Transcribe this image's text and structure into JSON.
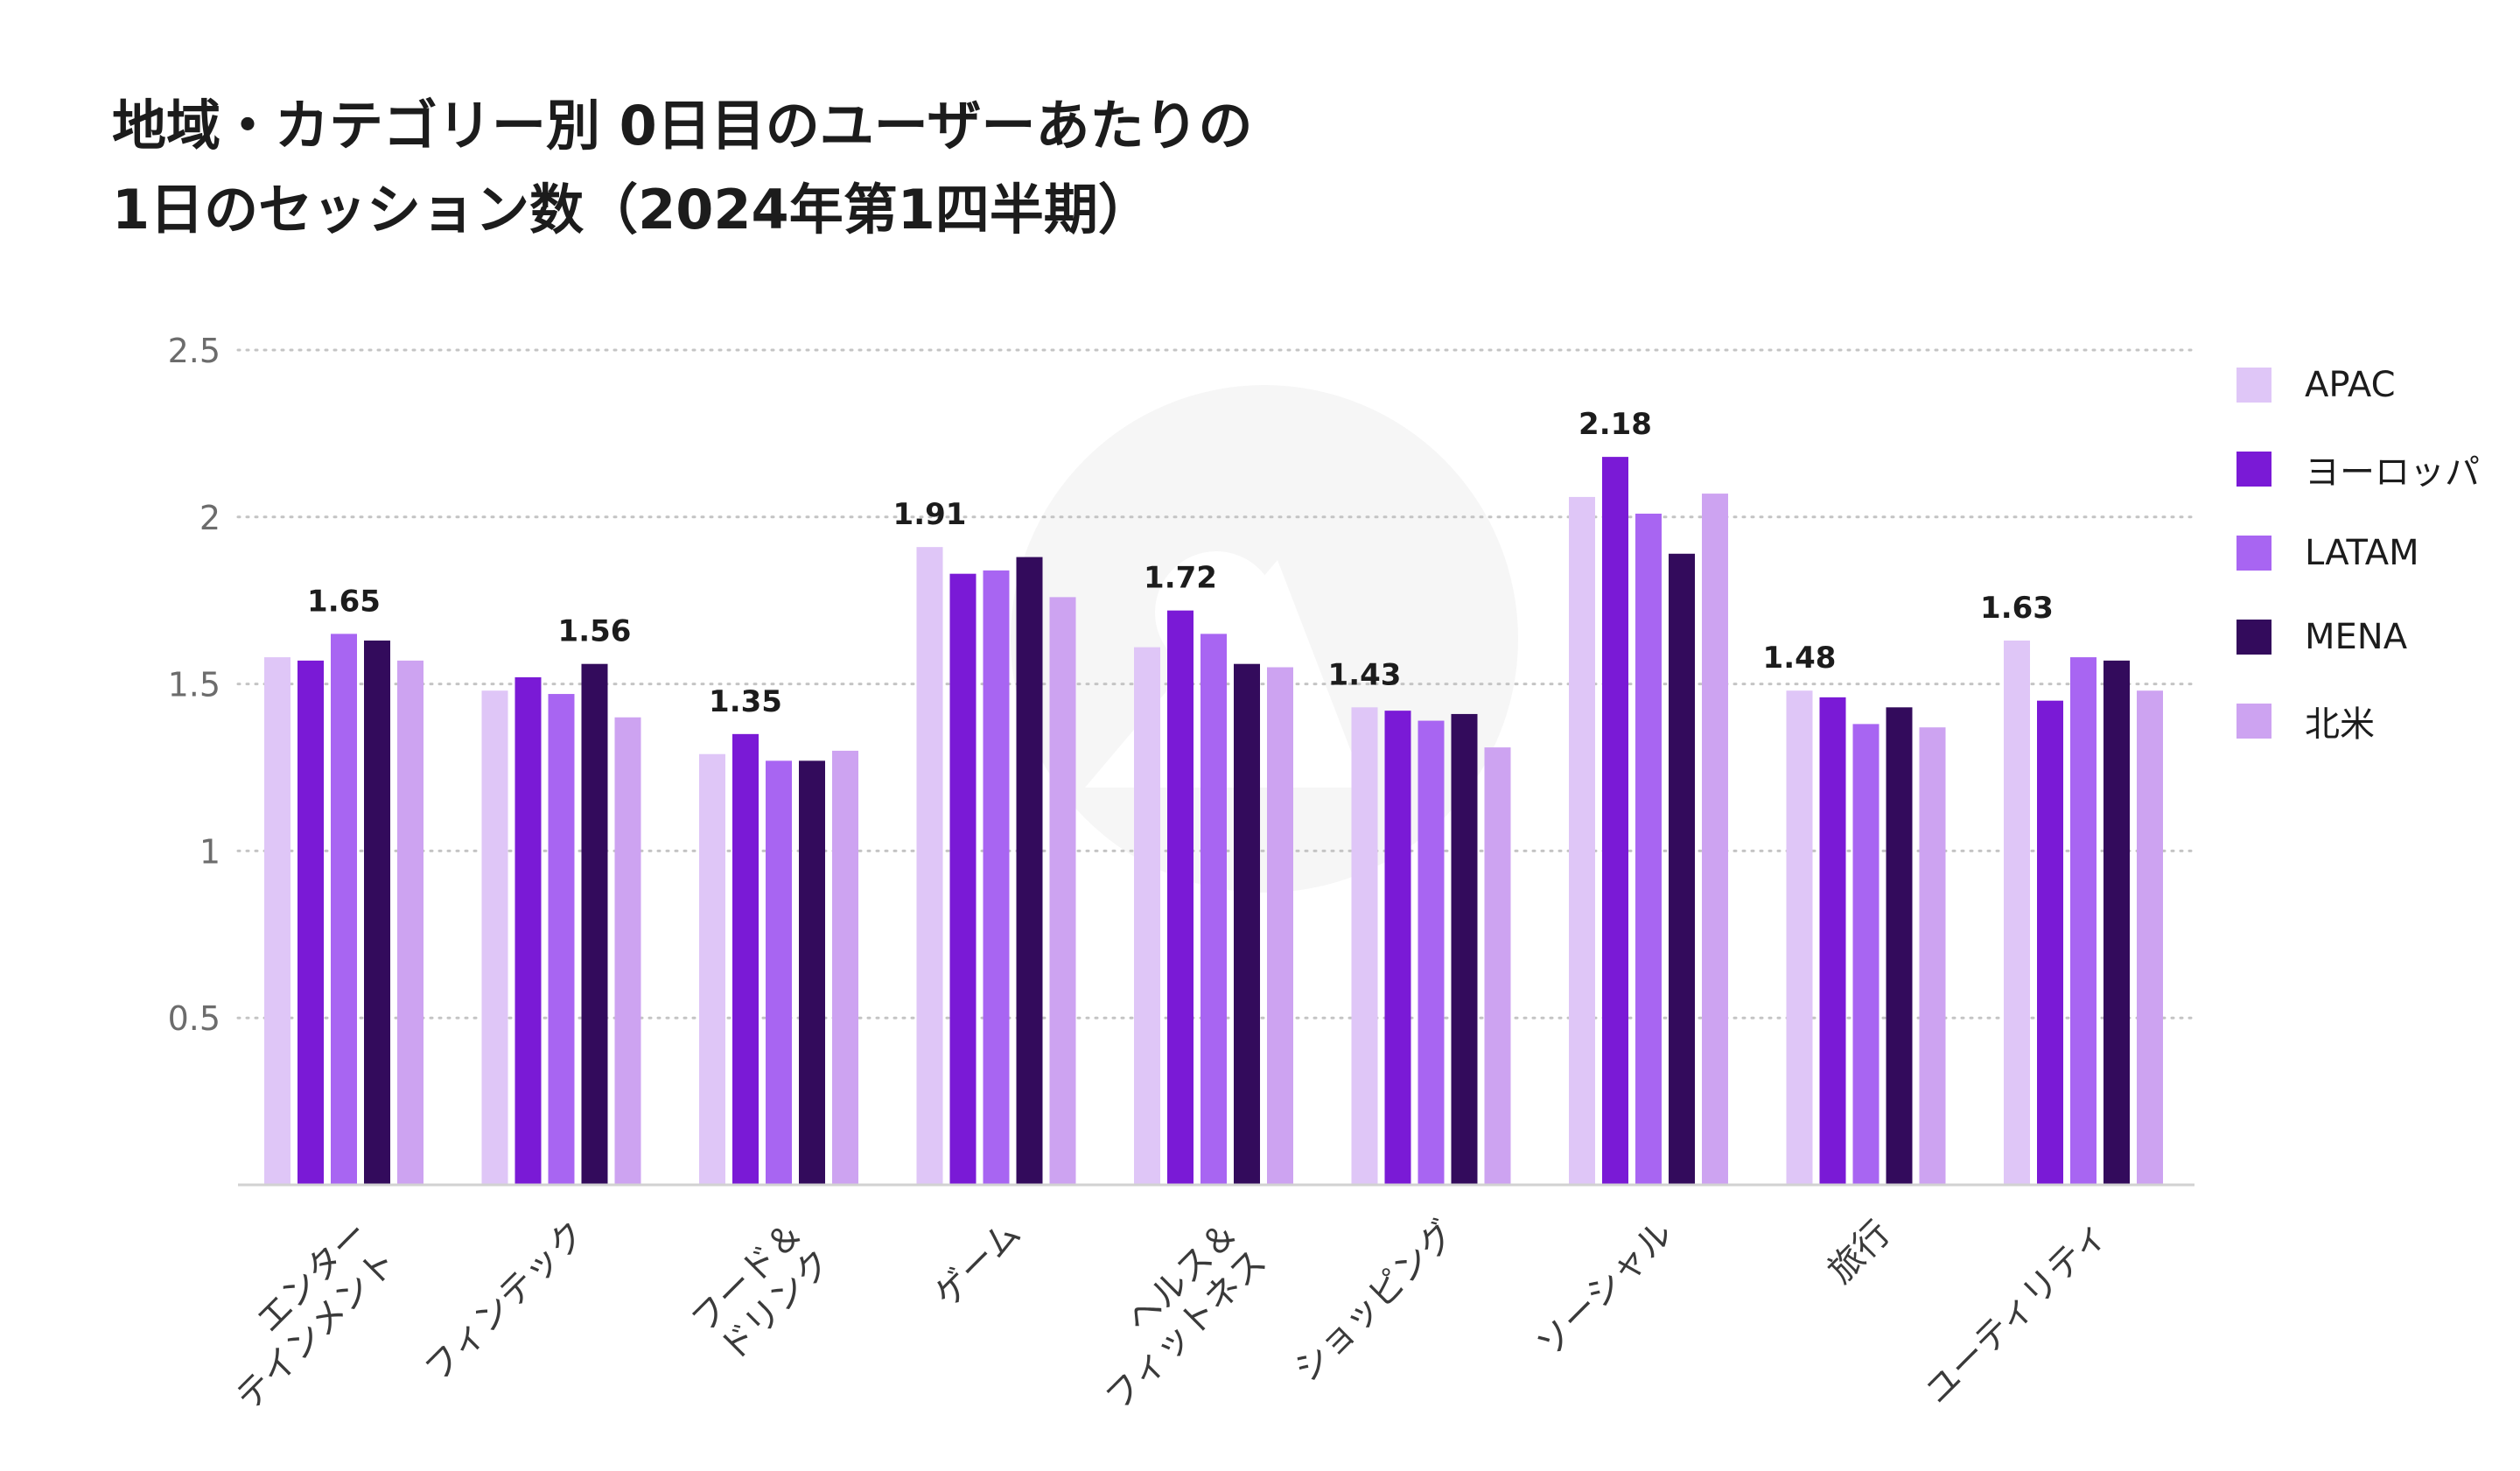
{
  "chart_data": {
    "type": "bar",
    "title": [
      "地域・カテゴリー別 0日目のユーザーあたりの",
      "1日のセッション数（2024年第1四半期）"
    ],
    "xlabel": "",
    "ylabel": "",
    "ylim": [
      0,
      2.5
    ],
    "yticks": [
      "0.5",
      "1",
      "1.5",
      "2",
      "2.5"
    ],
    "grid": true,
    "legend_position": "right",
    "categories": [
      [
        "エンター",
        "テインメント"
      ],
      [
        "フィンテック"
      ],
      [
        "フード＆",
        "ドリンク"
      ],
      [
        "ゲーム"
      ],
      [
        "ヘルス＆",
        "フィットネス"
      ],
      [
        "ショッピング"
      ],
      [
        "ソーシャル"
      ],
      [
        "旅行"
      ],
      [
        "ユーティリティ"
      ]
    ],
    "series": [
      {
        "name": "APAC",
        "color": "#dfc6f7",
        "values": [
          1.58,
          1.48,
          1.29,
          1.91,
          1.61,
          1.43,
          2.06,
          1.48,
          1.63
        ]
      },
      {
        "name": "ヨーロッパ",
        "color": "#7a1ad6",
        "values": [
          1.57,
          1.52,
          1.35,
          1.83,
          1.72,
          1.42,
          2.18,
          1.46,
          1.45
        ]
      },
      {
        "name": "LATAM",
        "color": "#a865f2",
        "values": [
          1.65,
          1.47,
          1.27,
          1.84,
          1.65,
          1.39,
          2.01,
          1.38,
          1.58
        ]
      },
      {
        "name": "MENA",
        "color": "#330b5c",
        "values": [
          1.63,
          1.56,
          1.27,
          1.88,
          1.56,
          1.41,
          1.89,
          1.43,
          1.57
        ]
      },
      {
        "name": "北米",
        "color": "#cda3f1",
        "values": [
          1.57,
          1.4,
          1.3,
          1.76,
          1.55,
          1.31,
          2.07,
          1.37,
          1.48
        ]
      }
    ],
    "data_labels": [
      "1.65",
      "1.56",
      "1.35",
      "1.91",
      "1.72",
      "1.43",
      "2.18",
      "1.48",
      "1.63"
    ]
  }
}
